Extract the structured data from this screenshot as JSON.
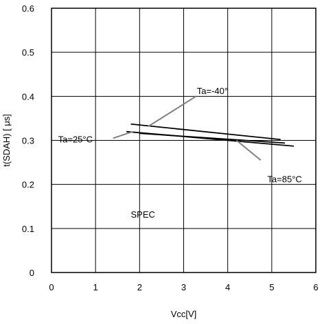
{
  "chart_data": {
    "type": "line",
    "title": "",
    "xlabel": "Vcc[V]",
    "ylabel": "t(SDAH) [ μs]",
    "xlim": [
      0,
      6
    ],
    "ylim": [
      0,
      0.6
    ],
    "x_ticks": [
      "0",
      "1",
      "2",
      "3",
      "4",
      "5",
      "6"
    ],
    "y_ticks": [
      "0",
      "0.1",
      "0.2",
      "0.3",
      "0.4",
      "0.5",
      "0.6"
    ],
    "grid": true,
    "legend": "none",
    "series": [
      {
        "name": "Ta=-40°",
        "x": [
          1.8,
          5.2
        ],
        "y": [
          0.337,
          0.302
        ]
      },
      {
        "name": "Ta=25°C",
        "x": [
          1.7,
          5.5
        ],
        "y": [
          0.32,
          0.287
        ]
      },
      {
        "name": "Ta=85°C",
        "x": [
          2.0,
          5.3
        ],
        "y": [
          0.316,
          0.294
        ]
      }
    ],
    "annotations": [
      {
        "text": "Ta=-40°",
        "x": 3.3,
        "y": 0.405,
        "tx": 3.28,
        "ty": 0.4,
        "px": 2.2,
        "py": 0.332
      },
      {
        "text": "Ta=25°C",
        "x": 0.15,
        "y": 0.295,
        "tx": 1.4,
        "ty": 0.305,
        "px": 1.85,
        "py": 0.32
      },
      {
        "text": "Ta=85°C",
        "x": 4.9,
        "y": 0.205,
        "tx": 4.75,
        "ty": 0.255,
        "px": 4.2,
        "py": 0.3
      },
      {
        "text": "SPEC",
        "x": 1.8,
        "y": 0.125
      }
    ]
  }
}
